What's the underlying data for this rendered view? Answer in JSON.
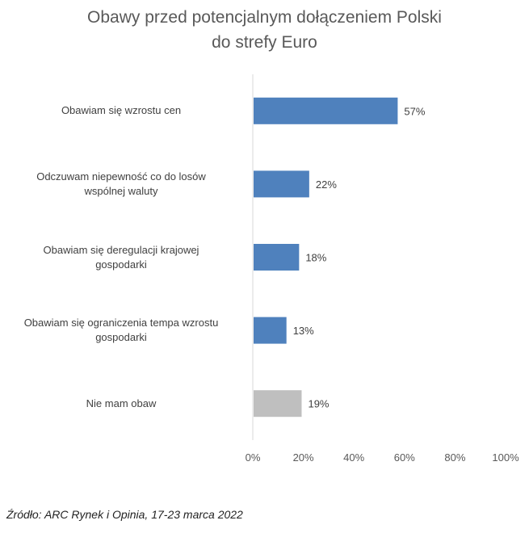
{
  "title": {
    "line1": "Obawy przed potencjalnym dołączeniem Polski",
    "line2": "do strefy Euro"
  },
  "source": "Źródło: ARC Rynek i Opinia, 17-23 marca 2022",
  "colors": {
    "primary": "#4f81bd",
    "neutral": "#bfbfbf",
    "axis": "#d9d9d9"
  },
  "chart_data": {
    "type": "bar",
    "orientation": "horizontal",
    "categories": [
      [
        "Obawiam się wzrostu cen"
      ],
      [
        "Odczuwam niepewność co do losów",
        "wspólnej waluty"
      ],
      [
        "Obawiam się deregulacji krajowej",
        "gospodarki"
      ],
      [
        "Obawiam się ograniczenia tempa wzrostu",
        "gospodarki"
      ],
      [
        "Nie mam obaw"
      ]
    ],
    "values": [
      57,
      22,
      18,
      13,
      19
    ],
    "value_labels": [
      "57%",
      "22%",
      "18%",
      "13%",
      "19%"
    ],
    "bar_colors": [
      "primary",
      "primary",
      "primary",
      "primary",
      "neutral"
    ],
    "xlim": [
      0,
      100
    ],
    "x_ticks": [
      "0%",
      "20%",
      "40%",
      "60%",
      "80%",
      "100%"
    ],
    "grid": false,
    "legend": false
  }
}
